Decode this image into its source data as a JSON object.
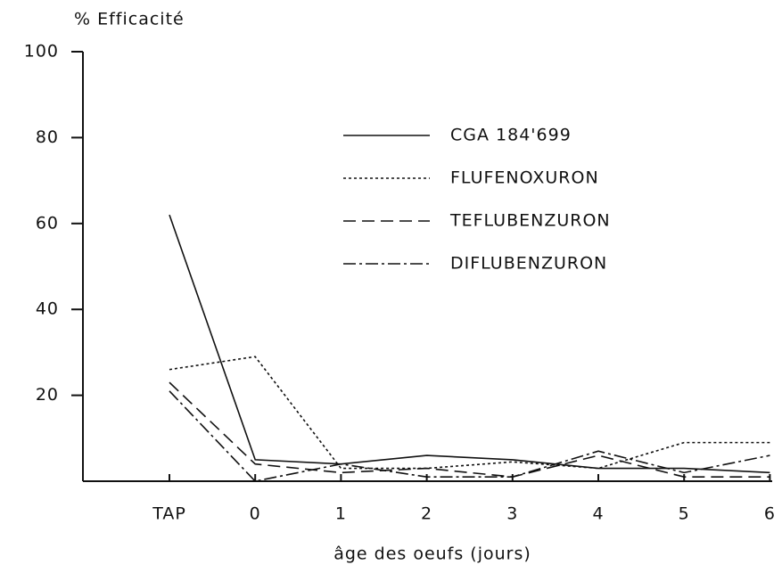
{
  "chart_data": {
    "type": "line",
    "title": "% Efficacité",
    "x_label": "âge des oeufs (jours)",
    "categories": [
      "TAP",
      "0",
      "1",
      "2",
      "3",
      "4",
      "5",
      "6"
    ],
    "series": [
      {
        "name": "CGA 184'699",
        "color": "#111111",
        "dash": "none",
        "values": [
          62,
          5,
          4,
          6,
          5,
          3,
          3,
          2
        ]
      },
      {
        "name": "FLUFENOXURON",
        "color": "#111111",
        "dash": "3 3",
        "values": [
          26,
          29,
          3,
          3,
          4.5,
          3,
          9,
          9
        ]
      },
      {
        "name": "TEFLUBENZURON",
        "color": "#111111",
        "dash": "14 7",
        "values": [
          23,
          4,
          2,
          3,
          1,
          6,
          1,
          1
        ]
      },
      {
        "name": "DIFLUBENZURON",
        "color": "#111111",
        "dash": "14 4 3 4",
        "values": [
          21,
          0,
          4,
          1,
          1,
          7,
          2,
          6
        ]
      }
    ],
    "ylim": [
      0,
      100
    ],
    "yticks": [
      20,
      40,
      60,
      80,
      100
    ],
    "grid": false,
    "legend": "upper right"
  }
}
